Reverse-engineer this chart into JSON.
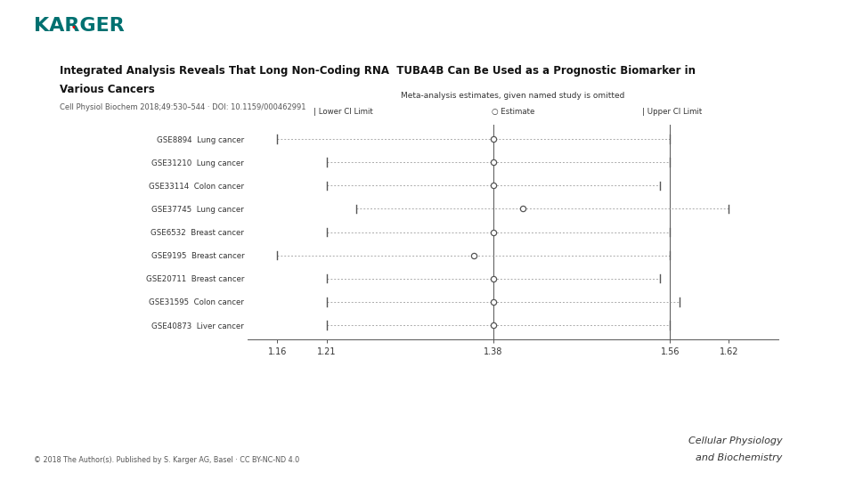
{
  "title_line1": "Integrated Analysis Reveals That Long Non-Coding RNA  TUBA4B Can Be Used as a Prognostic Biomarker in",
  "title_line2": "Various Cancers",
  "subtitle": "Cell Physiol Biochem 2018;49:530–544 · DOI: 10.1159/000462991",
  "chart_title": "Meta-analysis estimates, given named study is omitted",
  "studies": [
    {
      "label": "GSE8894  Lung cancer",
      "lower": 1.16,
      "estimate": 1.38,
      "upper": 1.56
    },
    {
      "label": "GSE31210  Lung cancer",
      "lower": 1.21,
      "estimate": 1.38,
      "upper": 1.56
    },
    {
      "label": "GSE33114  Colon cancer",
      "lower": 1.21,
      "estimate": 1.38,
      "upper": 1.55
    },
    {
      "label": "GSE37745  Lung cancer",
      "lower": 1.24,
      "estimate": 1.41,
      "upper": 1.62
    },
    {
      "label": "GSE6532  Breast cancer",
      "lower": 1.21,
      "estimate": 1.38,
      "upper": 1.56
    },
    {
      "label": "GSE9195  Breast cancer",
      "lower": 1.16,
      "estimate": 1.36,
      "upper": 1.56
    },
    {
      "label": "GSE20711  Breast cancer",
      "lower": 1.21,
      "estimate": 1.38,
      "upper": 1.55
    },
    {
      "label": "GSE31595  Colon cancer",
      "lower": 1.21,
      "estimate": 1.38,
      "upper": 1.57
    },
    {
      "label": "GSE40873  Liver cancer",
      "lower": 1.21,
      "estimate": 1.38,
      "upper": 1.56
    }
  ],
  "xlim": [
    1.13,
    1.67
  ],
  "xticks": [
    1.16,
    1.21,
    1.38,
    1.56,
    1.62
  ],
  "xtick_labels": [
    "1.16",
    "1.21",
    "1.38",
    "1.56",
    "1.62"
  ],
  "vlines": [
    1.38,
    1.56
  ],
  "bg_color": "#ffffff",
  "line_color": "#aaaaaa",
  "estimate_face_color": "#ffffff",
  "estimate_edge_color": "#555555",
  "karger_color": "#007070",
  "footer_text": "© 2018 The Author(s). Published by S. Karger AG, Basel · CC BY-NC-ND 4.0",
  "footer_right_line1": "Cellular Physiology",
  "footer_right_line2": "and Biochemistry"
}
